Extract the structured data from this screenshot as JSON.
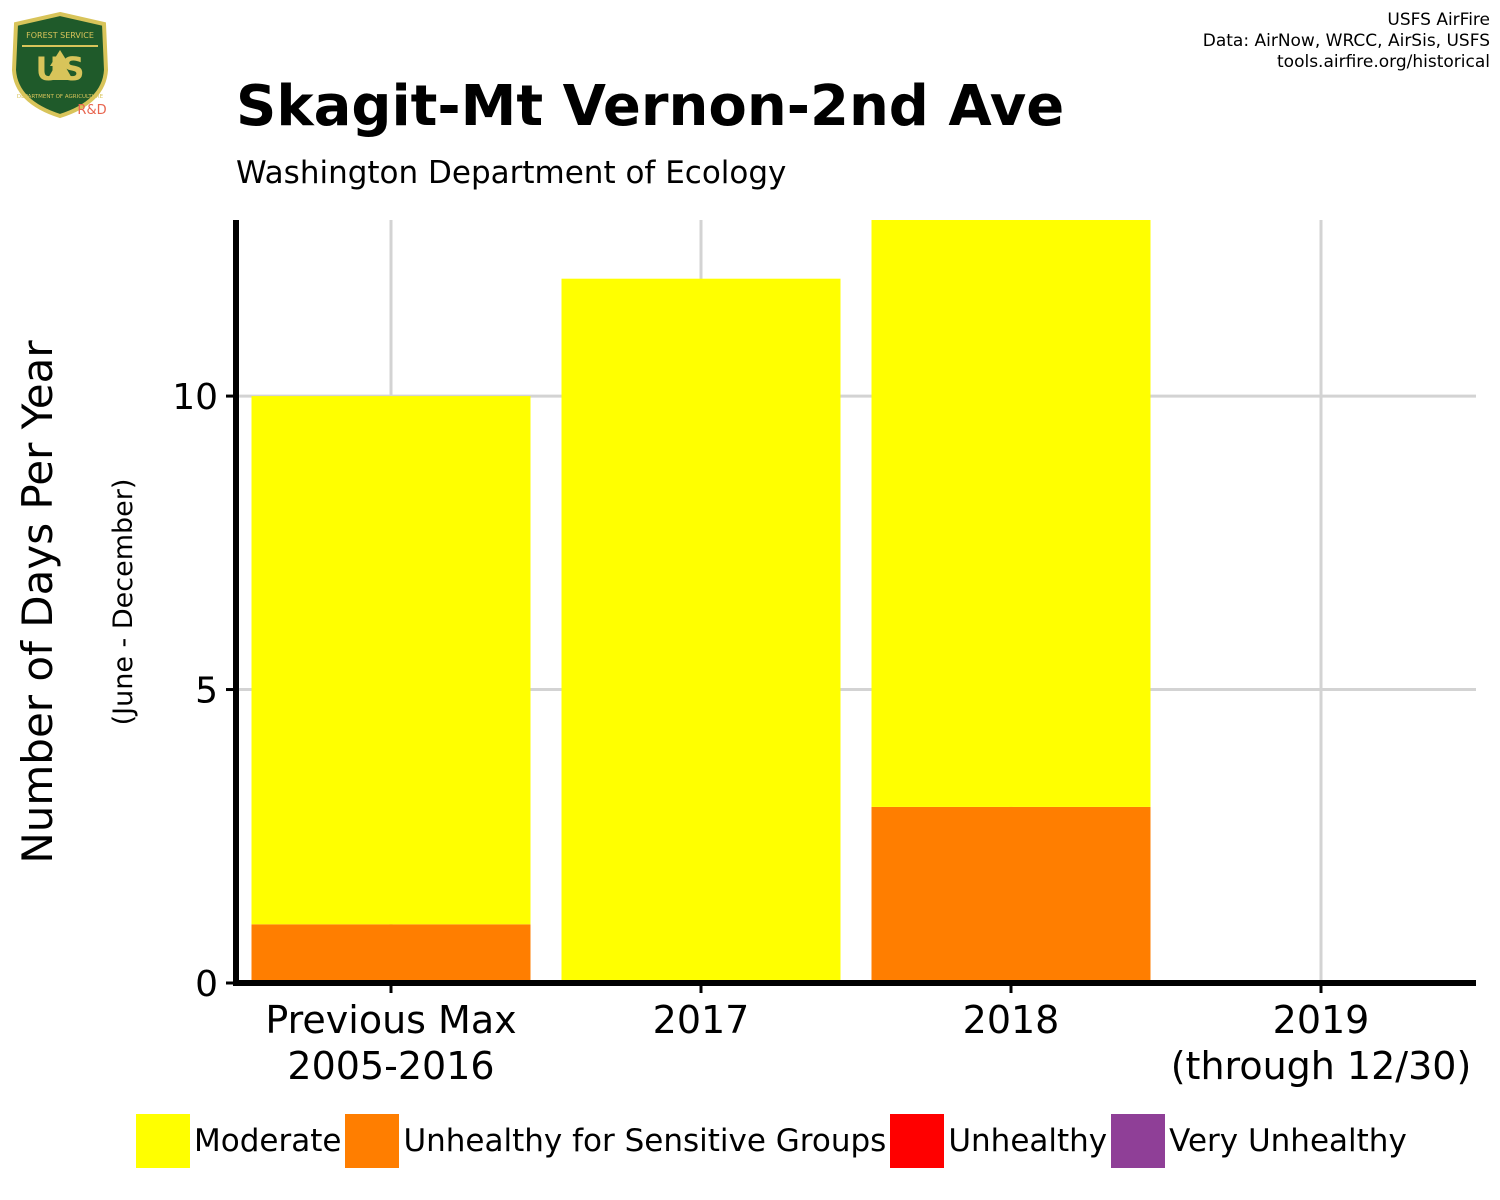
{
  "logo": {
    "text_top": "FOREST SERVICE",
    "text_main": "US",
    "text_bottom": "DEPARTMENT OF AGRICULTURE",
    "text_tag": "R&D"
  },
  "credits": {
    "line1": "USFS AirFire",
    "line2": "Data: AirNow, WRCC, AirSis, USFS",
    "line3": "tools.airfire.org/historical"
  },
  "title": "Skagit-Mt Vernon-2nd Ave",
  "subtitle": "Washington Department of Ecology",
  "chart_data": {
    "type": "bar",
    "stacked": true,
    "categories": [
      [
        "Previous Max",
        "2005-2016"
      ],
      [
        "2017"
      ],
      [
        "2018"
      ],
      [
        "2019",
        "(through 12/30)"
      ]
    ],
    "series": [
      {
        "name": "Unhealthy for Sensitive Groups",
        "color": "#FF7E00",
        "values": [
          1,
          0,
          3,
          0
        ]
      },
      {
        "name": "Moderate",
        "color": "#FFFF00",
        "values": [
          9,
          12,
          10,
          0
        ]
      },
      {
        "name": "Unhealthy",
        "color": "#FF0000",
        "values": [
          0,
          0,
          0,
          0
        ]
      },
      {
        "name": "Very Unhealthy",
        "color": "#8F3F97",
        "values": [
          0,
          0,
          0,
          0
        ]
      }
    ],
    "ylabel": "Number of Days Per Year",
    "ylabel_sub": "(June - December)",
    "ylim": [
      0,
      13
    ],
    "yticks": [
      0,
      5,
      10
    ],
    "grid": true
  },
  "legend": [
    {
      "label": "Moderate",
      "color": "#FFFF00"
    },
    {
      "label": "Unhealthy for Sensitive Groups",
      "color": "#FF7E00"
    },
    {
      "label": "Unhealthy",
      "color": "#FF0000"
    },
    {
      "label": "Very Unhealthy",
      "color": "#8F3F97"
    }
  ]
}
